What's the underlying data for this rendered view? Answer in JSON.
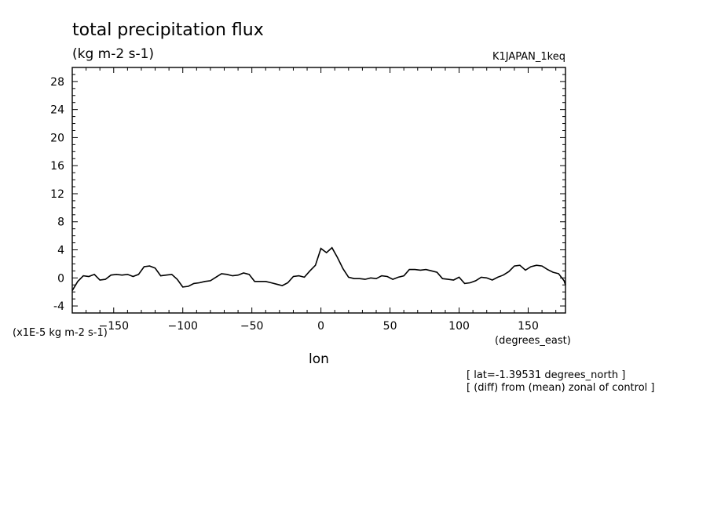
{
  "chart_data": {
    "type": "line",
    "title": "total precipitation flux",
    "units": "(kg m-2 s-1)",
    "run_label": "K1JAPAN_1keq",
    "scale_note": "(x1E-5 kg m-2 s-1)",
    "xlabel": "lon",
    "xunits": "(degrees_east)",
    "notes": [
      "[ lat=-1.39531 degrees_north ]",
      "[ (diff) from (mean) zonal of control ]"
    ],
    "xlim": [
      -180,
      177
    ],
    "ylim": [
      -5,
      30
    ],
    "xticks": [
      -150,
      -100,
      -50,
      0,
      50,
      100,
      150
    ],
    "yticks": [
      -4,
      0,
      4,
      8,
      12,
      16,
      20,
      24,
      28
    ],
    "series": [
      {
        "x": [
          -180,
          -176,
          -172,
          -168,
          -164,
          -160,
          -156,
          -152,
          -148,
          -144,
          -140,
          -136,
          -132,
          -128,
          -124,
          -120,
          -116,
          -112,
          -108,
          -104,
          -100,
          -96,
          -92,
          -88,
          -84,
          -80,
          -76,
          -72,
          -68,
          -64,
          -60,
          -56,
          -52,
          -48,
          -44,
          -40,
          -36,
          -32,
          -28,
          -24,
          -20,
          -16,
          -12,
          -8,
          -4,
          0,
          4,
          8,
          12,
          16,
          20,
          24,
          28,
          32,
          36,
          40,
          44,
          48,
          52,
          56,
          60,
          64,
          68,
          72,
          76,
          80,
          84,
          88,
          92,
          96,
          100,
          104,
          108,
          112,
          116,
          120,
          124,
          128,
          132,
          136,
          140,
          144,
          148,
          152,
          156,
          160,
          164,
          168,
          172,
          176,
          177
        ],
        "y": [
          -1.8,
          -0.5,
          0.3,
          0.2,
          0.5,
          -0.3,
          -0.2,
          0.4,
          0.5,
          0.4,
          0.5,
          0.2,
          0.5,
          1.6,
          1.7,
          1.4,
          0.3,
          0.4,
          0.5,
          -0.2,
          -1.3,
          -1.2,
          -0.8,
          -0.7,
          -0.5,
          -0.4,
          0.1,
          0.6,
          0.5,
          0.3,
          0.4,
          0.7,
          0.5,
          -0.5,
          -0.5,
          -0.5,
          -0.7,
          -0.9,
          -1.1,
          -0.7,
          0.2,
          0.3,
          0.1,
          1.0,
          1.8,
          4.2,
          3.6,
          4.3,
          2.9,
          1.3,
          0.1,
          -0.1,
          -0.1,
          -0.2,
          0.0,
          -0.1,
          0.3,
          0.2,
          -0.2,
          0.1,
          0.3,
          1.2,
          1.2,
          1.1,
          1.2,
          1.0,
          0.8,
          -0.1,
          -0.2,
          -0.3,
          0.1,
          -0.8,
          -0.7,
          -0.4,
          0.1,
          0.0,
          -0.3,
          0.1,
          0.4,
          0.9,
          1.7,
          1.8,
          1.1,
          1.6,
          1.8,
          1.7,
          1.2,
          0.8,
          0.6,
          -0.4,
          -1.0
        ]
      }
    ]
  }
}
